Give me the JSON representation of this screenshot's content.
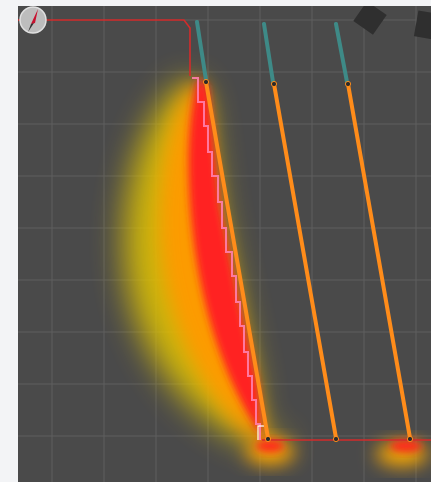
{
  "viewer": {
    "background_color": "#4a4a4a",
    "grid_color": "#5e5e5e",
    "page_background": "#f3f4f6"
  },
  "icons": {
    "compass": "compass-icon",
    "cube": "cube-icon"
  },
  "colors": {
    "orange_path": "#ff8c1a",
    "teal_path": "#3e8a87",
    "red_boundary": "#d32b2b",
    "heat_red": "#ff2020",
    "heat_orange": "#ff9a00",
    "heat_yellow": "#e6c800"
  }
}
